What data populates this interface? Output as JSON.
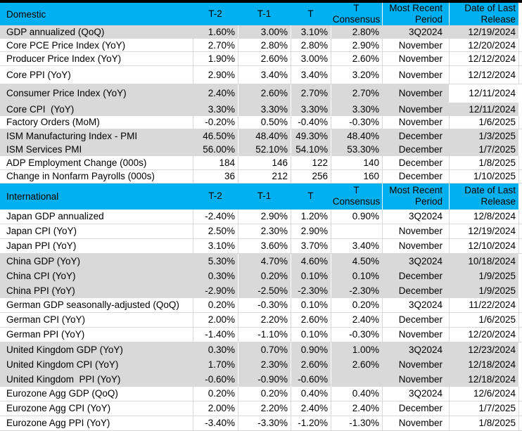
{
  "colors": {
    "header_bg": "#00B0F0",
    "row_gray": "#D9D9D9",
    "grid_line": "#D9D9D9",
    "top_bar": "#000000"
  },
  "column_headers": [
    "T-2",
    "T-1",
    "T",
    "T Consensus",
    "Most Recent Period",
    "Date of Last Release"
  ],
  "sections": [
    {
      "title": "Domestic",
      "rows": [
        {
          "label": "GDP annualized (QoQ)",
          "values": [
            "1.60%",
            "3.00%",
            "3.10%",
            "2.80%"
          ],
          "period": "3Q2024",
          "date": "12/19/2024",
          "shade": "gray"
        },
        {
          "label": "Core PCE Price Index (YoY)",
          "values": [
            "2.70%",
            "2.80%",
            "2.80%",
            "2.90%"
          ],
          "period": "November",
          "date": "12/20/2024",
          "shade": "white"
        },
        {
          "label": "Producer Price Index (YoY)",
          "values": [
            "1.90%",
            "2.60%",
            "3.00%",
            "2.60%"
          ],
          "period": "November",
          "date": "12/12/2024",
          "shade": "white"
        },
        {
          "label": "Core PPI (YoY)",
          "values": [
            "2.90%",
            "3.40%",
            "3.40%",
            "3.20%"
          ],
          "period": "November",
          "date": "12/12/2024",
          "shade": "white",
          "tall": true
        },
        {
          "label": "Consumer Price Index (YoY)",
          "values": [
            "2.40%",
            "2.60%",
            "2.70%",
            "2.70%"
          ],
          "period": "November",
          "date": "12/11/2024",
          "shade": "gray",
          "tall": true,
          "date_white": true
        },
        {
          "label": "Core CPI  (YoY)",
          "values": [
            "3.30%",
            "3.30%",
            "3.30%",
            "3.30%"
          ],
          "period": "November",
          "date": "12/11/2024",
          "shade": "gray"
        },
        {
          "label": "Factory Orders (MoM)",
          "values": [
            "-0.20%",
            "0.50%",
            "-0.40%",
            "-0.30%"
          ],
          "period": "November",
          "date": "1/6/2025",
          "shade": "white"
        },
        {
          "label": "ISM Manufacturing Index - PMI",
          "values": [
            "46.50%",
            "48.40%",
            "49.30%",
            "48.40%"
          ],
          "period": "December",
          "date": "1/3/2025",
          "shade": "gray"
        },
        {
          "label": "ISM Services PMI",
          "values": [
            "56.00%",
            "52.10%",
            "54.10%",
            "53.30%"
          ],
          "period": "December",
          "date": "1/7/2025",
          "shade": "gray"
        },
        {
          "label": "ADP Employment Change (000s)",
          "values": [
            "184",
            "146",
            "122",
            "140"
          ],
          "period": "December",
          "date": "1/8/2025",
          "shade": "white"
        },
        {
          "label": "Change in Nonfarm Payrolls (000s)",
          "values": [
            "36",
            "212",
            "256",
            "160"
          ],
          "period": "December",
          "date": "1/10/2025",
          "shade": "white"
        }
      ]
    },
    {
      "title": "International",
      "rows": [
        {
          "label": "Japan GDP annualized",
          "values": [
            "-2.40%",
            "2.90%",
            "1.20%",
            "0.90%"
          ],
          "period": "3Q2024",
          "date": "12/8/2024",
          "shade": "white"
        },
        {
          "label": "Japan CPI (YoY)",
          "values": [
            "2.50%",
            "2.30%",
            "2.90%",
            ""
          ],
          "period": "November",
          "date": "12/19/2024",
          "shade": "white"
        },
        {
          "label": "Japan PPI (YoY)",
          "values": [
            "3.10%",
            "3.60%",
            "3.70%",
            "3.40%"
          ],
          "period": "November",
          "date": "12/10/2024",
          "shade": "white"
        },
        {
          "label": "China GDP (YoY)",
          "values": [
            "5.30%",
            "4.70%",
            "4.60%",
            "4.50%"
          ],
          "period": "3Q2024",
          "date": "10/18/2024",
          "shade": "gray"
        },
        {
          "label": "China CPI (YoY)",
          "values": [
            "0.30%",
            "0.20%",
            "0.10%",
            "0.10%"
          ],
          "period": "December",
          "date": "1/9/2025",
          "shade": "gray"
        },
        {
          "label": "China PPI (YoY)",
          "values": [
            "-2.90%",
            "-2.50%",
            "-2.30%",
            "-2.30%"
          ],
          "period": "December",
          "date": "1/9/2025",
          "shade": "gray"
        },
        {
          "label": "German GDP seasonally-adjusted (QoQ)",
          "values": [
            "0.20%",
            "-0.30%",
            "0.10%",
            "0.20%"
          ],
          "period": "3Q2024",
          "date": "11/22/2024",
          "shade": "white"
        },
        {
          "label": "German CPI (YoY)",
          "values": [
            "2.00%",
            "2.20%",
            "2.60%",
            "2.40%"
          ],
          "period": "December",
          "date": "1/6/2025",
          "shade": "white"
        },
        {
          "label": "German PPI (YoY)",
          "values": [
            "-1.40%",
            "-1.10%",
            "0.10%",
            "-0.30%"
          ],
          "period": "November",
          "date": "12/20/2024",
          "shade": "white"
        },
        {
          "label": "United Kingdom GDP (YoY)",
          "values": [
            "0.30%",
            "0.70%",
            "0.90%",
            "1.00%"
          ],
          "period": "3Q2024",
          "date": "12/23/2024",
          "shade": "gray"
        },
        {
          "label": "United Kingdom CPI (YoY)",
          "values": [
            "1.70%",
            "2.30%",
            "2.60%",
            "2.60%"
          ],
          "period": "November",
          "date": "12/18/2024",
          "shade": "gray"
        },
        {
          "label": "United Kingdom  PPI (YoY)",
          "values": [
            "-0.60%",
            "-0.90%",
            "-0.60%",
            ""
          ],
          "period": "November",
          "date": "12/18/2024",
          "shade": "gray"
        },
        {
          "label": "Eurozone Agg GDP (QoQ)",
          "values": [
            "0.20%",
            "0.20%",
            "0.40%",
            "0.40%"
          ],
          "period": "3Q2024",
          "date": "12/6/2024",
          "shade": "white"
        },
        {
          "label": "Eurozone Agg CPI (YoY)",
          "values": [
            "2.00%",
            "2.20%",
            "2.40%",
            "2.40%"
          ],
          "period": "December",
          "date": "1/7/2025",
          "shade": "white"
        },
        {
          "label": "Eurozone Agg PPI (YoY)",
          "values": [
            "-3.40%",
            "-3.30%",
            "-1.20%",
            "-1.30%"
          ],
          "period": "November",
          "date": "1/8/2025",
          "shade": "white"
        }
      ]
    }
  ]
}
